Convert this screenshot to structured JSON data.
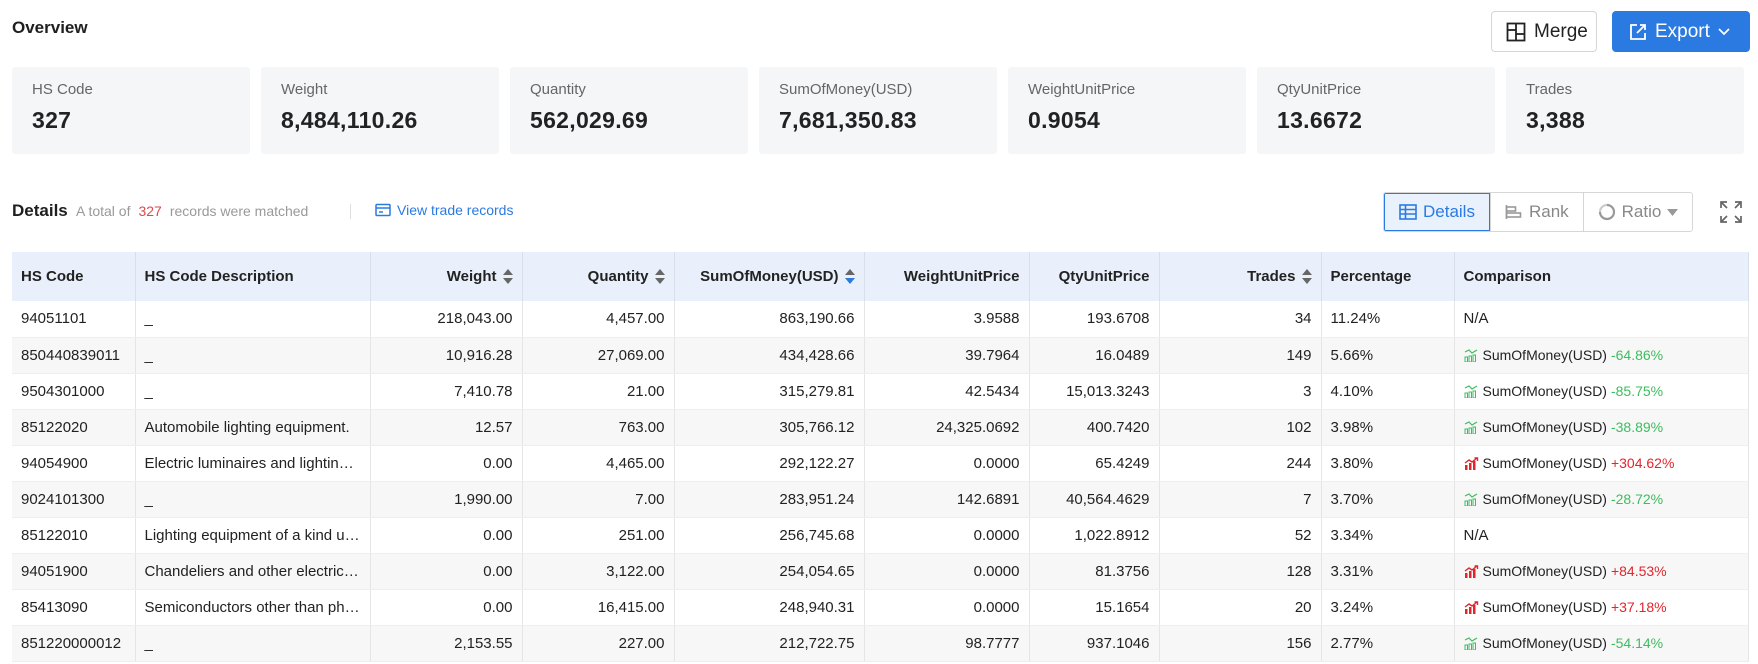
{
  "overview": {
    "title": "Overview"
  },
  "toolbar": {
    "merge_label": "Merge",
    "export_label": "Export"
  },
  "stats": [
    {
      "label": "HS Code",
      "value": "327"
    },
    {
      "label": "Weight",
      "value": "8,484,110.26"
    },
    {
      "label": "Quantity",
      "value": "562,029.69"
    },
    {
      "label": "SumOfMoney(USD)",
      "value": "7,681,350.83"
    },
    {
      "label": "WeightUnitPrice",
      "value": "0.9054"
    },
    {
      "label": "QtyUnitPrice",
      "value": "13.6672"
    },
    {
      "label": "Trades",
      "value": "3,388"
    }
  ],
  "details": {
    "title": "Details",
    "prefix": "A total of",
    "count": "327",
    "suffix": "records were matched",
    "view_records": "View trade records"
  },
  "view_switch": {
    "details": "Details",
    "rank": "Rank",
    "ratio": "Ratio"
  },
  "colors": {
    "accent": "#2a7ae2",
    "negative": "#3dbd5f",
    "positive": "#e0262d",
    "count": "#e0474c"
  },
  "table": {
    "headers": {
      "hs_code": "HS Code",
      "description": "HS Code Description",
      "weight": "Weight",
      "quantity": "Quantity",
      "sum": "SumOfMoney(USD)",
      "weight_unit": "WeightUnitPrice",
      "qty_unit": "QtyUnitPrice",
      "trades": "Trades",
      "percentage": "Percentage",
      "comparison": "Comparison"
    },
    "rows": [
      {
        "hs_code": "94051101",
        "description": "_",
        "weight": "218,043.00",
        "quantity": "4,457.00",
        "sum": "863,190.66",
        "weight_unit": "3.9588",
        "qty_unit": "193.6708",
        "trades": "34",
        "percentage": "11.24%",
        "comparison": {
          "na": "N/A"
        }
      },
      {
        "hs_code": "850440839011",
        "description": "_",
        "weight": "10,916.28",
        "quantity": "27,069.00",
        "sum": "434,428.66",
        "weight_unit": "39.7964",
        "qty_unit": "16.0489",
        "trades": "149",
        "percentage": "5.66%",
        "comparison": {
          "metric": "SumOfMoney(USD)",
          "change": "-64.86%",
          "dir": "down"
        }
      },
      {
        "hs_code": "9504301000",
        "description": "_",
        "weight": "7,410.78",
        "quantity": "21.00",
        "sum": "315,279.81",
        "weight_unit": "42.5434",
        "qty_unit": "15,013.3243",
        "trades": "3",
        "percentage": "4.10%",
        "comparison": {
          "metric": "SumOfMoney(USD)",
          "change": "-85.75%",
          "dir": "down"
        }
      },
      {
        "hs_code": "85122020",
        "description": "Automobile lighting equipment.",
        "weight": "12.57",
        "quantity": "763.00",
        "sum": "305,766.12",
        "weight_unit": "24,325.0692",
        "qty_unit": "400.7420",
        "trades": "102",
        "percentage": "3.98%",
        "comparison": {
          "metric": "SumOfMoney(USD)",
          "change": "-38.89%",
          "dir": "down"
        }
      },
      {
        "hs_code": "94054900",
        "description": "Electric luminaires and lighting fittings",
        "weight": "0.00",
        "quantity": "4,465.00",
        "sum": "292,122.27",
        "weight_unit": "0.0000",
        "qty_unit": "65.4249",
        "trades": "244",
        "percentage": "3.80%",
        "comparison": {
          "metric": "SumOfMoney(USD)",
          "change": "+304.62%",
          "dir": "up"
        }
      },
      {
        "hs_code": "9024101300",
        "description": "_",
        "weight": "1,990.00",
        "quantity": "7.00",
        "sum": "283,951.24",
        "weight_unit": "142.6891",
        "qty_unit": "40,564.4629",
        "trades": "7",
        "percentage": "3.70%",
        "comparison": {
          "metric": "SumOfMoney(USD)",
          "change": "-28.72%",
          "dir": "down"
        }
      },
      {
        "hs_code": "85122010",
        "description": "Lighting equipment of a kind used on bicycles",
        "weight": "0.00",
        "quantity": "251.00",
        "sum": "256,745.68",
        "weight_unit": "0.0000",
        "qty_unit": "1,022.8912",
        "trades": "52",
        "percentage": "3.34%",
        "comparison": {
          "na": "N/A"
        }
      },
      {
        "hs_code": "94051900",
        "description": "Chandeliers and other electric ceiling lamps",
        "weight": "0.00",
        "quantity": "3,122.00",
        "sum": "254,054.65",
        "weight_unit": "0.0000",
        "qty_unit": "81.3756",
        "trades": "128",
        "percentage": "3.31%",
        "comparison": {
          "metric": "SumOfMoney(USD)",
          "change": "+84.53%",
          "dir": "up"
        }
      },
      {
        "hs_code": "85413090",
        "description": "Semiconductors other than photosensitive devices",
        "weight": "0.00",
        "quantity": "16,415.00",
        "sum": "248,940.31",
        "weight_unit": "0.0000",
        "qty_unit": "15.1654",
        "trades": "20",
        "percentage": "3.24%",
        "comparison": {
          "metric": "SumOfMoney(USD)",
          "change": "+37.18%",
          "dir": "up"
        }
      },
      {
        "hs_code": "851220000012",
        "description": "_",
        "weight": "2,153.55",
        "quantity": "227.00",
        "sum": "212,722.75",
        "weight_unit": "98.7777",
        "qty_unit": "937.1046",
        "trades": "156",
        "percentage": "2.77%",
        "comparison": {
          "metric": "SumOfMoney(USD)",
          "change": "-54.14%",
          "dir": "down"
        }
      }
    ]
  }
}
